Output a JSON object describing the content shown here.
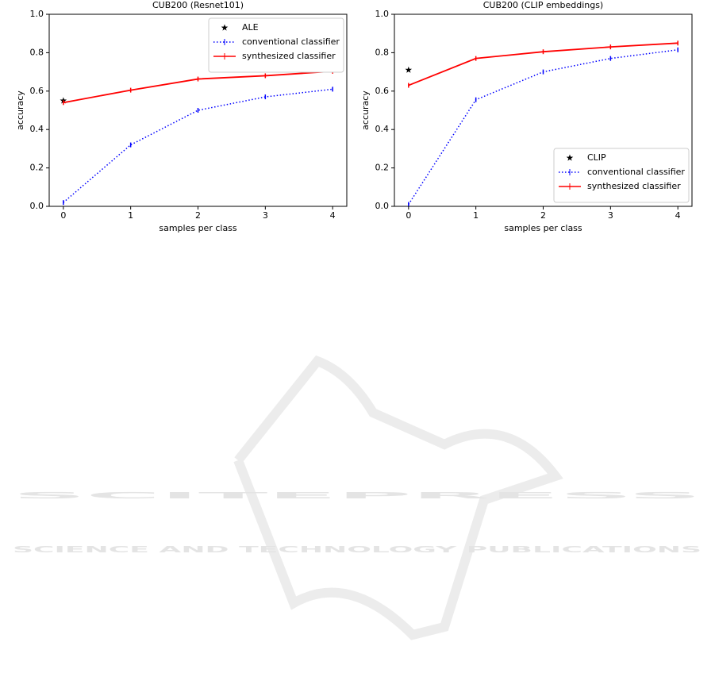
{
  "chart_data": [
    {
      "type": "line",
      "title": "CUB200 (Resnet101)",
      "x_label": "samples per class",
      "y_label": "accuracy",
      "xlim": [
        -0.21,
        4.21
      ],
      "ylim": [
        0,
        1
      ],
      "xticks": [
        0,
        1,
        2,
        3,
        4
      ],
      "yticks": [
        {
          "value": 0,
          "label": "0.0"
        },
        0.2,
        0.4,
        0.6,
        0.8,
        {
          "value": 1,
          "label": "1.0"
        }
      ],
      "legend": "upper right",
      "series": [
        {
          "name": "ALE",
          "color": "#000000",
          "marker": "star",
          "x": [
            0
          ],
          "values": [
            0.55
          ]
        },
        {
          "name": "conventional classifier",
          "color": "#0000ff",
          "linestyle": "dotted",
          "x": [
            0,
            1,
            2,
            3,
            4
          ],
          "values": [
            0.02,
            0.32,
            0.5,
            0.57,
            0.61
          ]
        },
        {
          "name": "synthesized classifier",
          "color": "#ff0000",
          "linestyle": "solid",
          "x": [
            0,
            1,
            2,
            3,
            4
          ],
          "values": [
            0.54,
            0.605,
            0.663,
            0.68,
            0.703
          ]
        }
      ]
    },
    {
      "type": "line",
      "title": "CUB200 (CLIP embeddings)",
      "x_label": "samples per class",
      "y_label": "accuracy",
      "xlim": [
        -0.21,
        4.21
      ],
      "ylim": [
        0,
        1
      ],
      "xticks": [
        0,
        1,
        2,
        3,
        4
      ],
      "yticks": [
        {
          "value": 0,
          "label": "0.0"
        },
        0.2,
        0.4,
        0.6,
        0.8,
        {
          "value": 1,
          "label": "1.0"
        }
      ],
      "legend": "lower right",
      "series": [
        {
          "name": "CLIP",
          "color": "#000000",
          "marker": "star",
          "x": [
            0
          ],
          "values": [
            0.71
          ]
        },
        {
          "name": "conventional classifier",
          "color": "#0000ff",
          "linestyle": "dotted",
          "x": [
            0,
            1,
            2,
            3,
            4
          ],
          "values": [
            0.01,
            0.555,
            0.7,
            0.77,
            0.815
          ]
        },
        {
          "name": "synthesized classifier",
          "color": "#ff0000",
          "linestyle": "solid",
          "x": [
            0,
            1,
            2,
            3,
            4
          ],
          "values": [
            0.63,
            0.77,
            0.805,
            0.83,
            0.85
          ]
        }
      ]
    }
  ],
  "watermark": {
    "title": "SCITEPRESS",
    "subtitle": "SCIENCE AND TECHNOLOGY PUBLICATIONS"
  }
}
